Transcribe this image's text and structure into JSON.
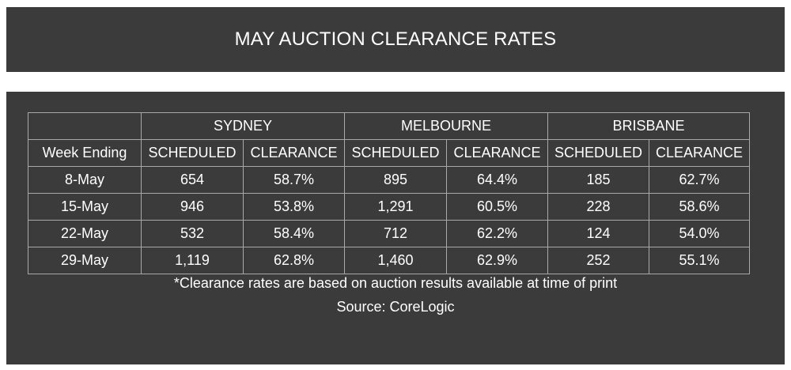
{
  "title": "MAY AUCTION CLEARANCE RATES",
  "table": {
    "cities": [
      "SYDNEY",
      "MELBOURNE",
      "BRISBANE"
    ],
    "week_header": "Week Ending",
    "sub_headers": [
      "SCHEDULED",
      "CLEARANCE"
    ],
    "rows": [
      {
        "week": "8-May",
        "cells": [
          "654",
          "58.7%",
          "895",
          "64.4%",
          "185",
          "62.7%"
        ]
      },
      {
        "week": "15-May",
        "cells": [
          "946",
          "53.8%",
          "1,291",
          "60.5%",
          "228",
          "58.6%"
        ]
      },
      {
        "week": "22-May",
        "cells": [
          "532",
          "58.4%",
          "712",
          "62.2%",
          "124",
          "54.0%"
        ]
      },
      {
        "week": "29-May",
        "cells": [
          "1,119",
          "62.8%",
          "1,460",
          "62.9%",
          "252",
          "55.1%"
        ]
      }
    ]
  },
  "footnote": "*Clearance rates are based on auction results available at time of print",
  "source": "Source: CoreLogic"
}
